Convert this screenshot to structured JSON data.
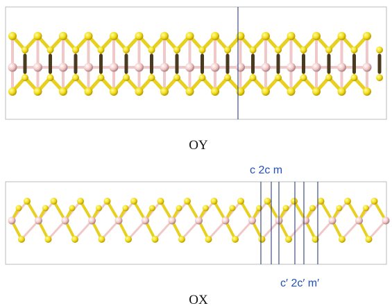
{
  "panels": [
    {
      "label": "OY"
    },
    {
      "label": "OX",
      "top_annotation": "c 2c m",
      "bottom_annotation": "c′ 2c′ m′"
    }
  ]
}
